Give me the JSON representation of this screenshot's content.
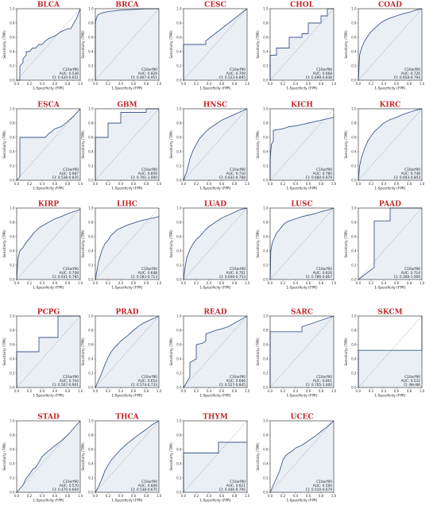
{
  "style": {
    "title_color": "#c0262c",
    "line_color": "#3d5a8a",
    "fill_color": "#d9e2ef",
    "diag_color": "#777777"
  },
  "common": {
    "xlabel": "1-Specificity (FPR)",
    "ylabel": "Sensitivity (TPR)",
    "ticks": [
      "0.0",
      "0.2",
      "0.4",
      "0.6",
      "0.8",
      "1.0"
    ],
    "auc_prefix": "AUC: ",
    "ci_prefix": "CI: "
  },
  "chart_data": [
    {
      "type": "line",
      "title": "BLCA",
      "gene": "C10orf90",
      "auc": "0.536",
      "ci": "0.420-0.651",
      "xlim": [
        0,
        1
      ],
      "ylim": [
        0,
        1
      ],
      "x": [
        0,
        0.05,
        0.05,
        0.1,
        0.1,
        0.15,
        0.15,
        0.2,
        0.25,
        0.3,
        0.35,
        0.4,
        0.45,
        0.5,
        0.55,
        0.6,
        0.65,
        0.7,
        0.75,
        0.8,
        0.85,
        0.9,
        0.95,
        1
      ],
      "y": [
        0,
        0,
        0.2,
        0.25,
        0.3,
        0.35,
        0.4,
        0.4,
        0.45,
        0.45,
        0.5,
        0.5,
        0.55,
        0.58,
        0.6,
        0.62,
        0.65,
        0.68,
        0.7,
        0.72,
        0.72,
        0.8,
        0.88,
        1
      ]
    },
    {
      "type": "line",
      "title": "BRCA",
      "gene": "C10orf90",
      "auc": "0.929",
      "ci": "0.907-0.951",
      "xlim": [
        0,
        1
      ],
      "ylim": [
        0,
        1
      ],
      "x": [
        0,
        0,
        0.02,
        0.05,
        0.1,
        0.15,
        0.2,
        0.3,
        0.4,
        0.6,
        0.8,
        1
      ],
      "y": [
        0,
        0.8,
        0.88,
        0.92,
        0.94,
        0.95,
        0.96,
        0.97,
        0.98,
        0.99,
        1,
        1
      ]
    },
    {
      "type": "line",
      "title": "CESC",
      "gene": "C10orf90",
      "auc": "0.709",
      "ci": "0.523-0.895",
      "xlim": [
        0,
        1
      ],
      "ylim": [
        0,
        1
      ],
      "x": [
        0,
        0,
        0.35,
        0.35,
        1
      ],
      "y": [
        0,
        0.5,
        0.5,
        0.55,
        1
      ]
    },
    {
      "type": "line",
      "title": "CHOL",
      "gene": "C10orf90",
      "auc": "0.668",
      "ci": "0.498-0.838",
      "xlim": [
        0,
        1
      ],
      "ylim": [
        0,
        1
      ],
      "x": [
        0,
        0,
        0.1,
        0.1,
        0.3,
        0.3,
        0.5,
        0.5,
        0.6,
        0.6,
        0.8,
        0.8,
        0.9,
        0.9,
        1
      ],
      "y": [
        0,
        0.35,
        0.35,
        0.45,
        0.45,
        0.6,
        0.6,
        0.65,
        0.65,
        0.8,
        0.8,
        0.9,
        0.9,
        1,
        1
      ]
    },
    {
      "type": "line",
      "title": "COAD",
      "gene": "C10orf90",
      "auc": "0.726",
      "ci": "0.658-0.794",
      "xlim": [
        0,
        1
      ],
      "ylim": [
        0,
        1
      ],
      "x": [
        0,
        0.02,
        0.05,
        0.1,
        0.15,
        0.2,
        0.25,
        0.3,
        0.35,
        0.4,
        0.5,
        0.6,
        0.7,
        0.8,
        0.9,
        1
      ],
      "y": [
        0,
        0.35,
        0.45,
        0.55,
        0.62,
        0.68,
        0.72,
        0.76,
        0.8,
        0.83,
        0.87,
        0.9,
        0.93,
        0.95,
        0.98,
        1
      ]
    },
    {
      "type": "line",
      "title": "ESCA",
      "gene": "C10orf90",
      "auc": "0.687",
      "ci": "0.538-0.835",
      "xlim": [
        0,
        1
      ],
      "ylim": [
        0,
        1
      ],
      "x": [
        0,
        0.05,
        0.05,
        0.45,
        0.5,
        0.55,
        0.6,
        0.7,
        0.8,
        0.9,
        1
      ],
      "y": [
        0,
        0.05,
        0.6,
        0.6,
        0.65,
        0.68,
        0.72,
        0.75,
        0.82,
        0.9,
        1
      ]
    },
    {
      "type": "line",
      "title": "GBM",
      "gene": "C10orf90",
      "auc": "0.856",
      "ci": "0.701-1.000",
      "xlim": [
        0,
        1
      ],
      "ylim": [
        0,
        1
      ],
      "x": [
        0,
        0,
        0.2,
        0.2,
        0.4,
        0.4,
        0.8,
        0.8,
        1
      ],
      "y": [
        0,
        0.6,
        0.6,
        0.8,
        0.8,
        0.95,
        0.95,
        1,
        1
      ]
    },
    {
      "type": "line",
      "title": "HNSC",
      "gene": "C10orf90",
      "auc": "0.710",
      "ci": "0.632-0.788",
      "xlim": [
        0,
        1
      ],
      "ylim": [
        0,
        1
      ],
      "x": [
        0,
        0.05,
        0.1,
        0.15,
        0.2,
        0.25,
        0.3,
        0.35,
        0.4,
        0.5,
        0.6,
        0.7,
        0.8,
        0.9,
        1
      ],
      "y": [
        0,
        0.12,
        0.3,
        0.42,
        0.5,
        0.58,
        0.63,
        0.68,
        0.72,
        0.78,
        0.84,
        0.88,
        0.92,
        0.96,
        1
      ]
    },
    {
      "type": "line",
      "title": "KICH",
      "gene": "C10orf90",
      "auc": "0.780",
      "ci": "0.680-0.879",
      "xlim": [
        0,
        1
      ],
      "ylim": [
        0,
        1
      ],
      "x": [
        0,
        0,
        0.02,
        0.05,
        0.05,
        0.2,
        0.3,
        0.4,
        0.5,
        0.6,
        0.7,
        0.8,
        0.9,
        1
      ],
      "y": [
        0,
        0.3,
        0.5,
        0.55,
        0.7,
        0.72,
        0.75,
        0.76,
        0.78,
        0.8,
        0.82,
        0.84,
        0.86,
        0.88
      ]
    },
    {
      "type": "line",
      "title": "KIRC",
      "gene": "C10orf90",
      "auc": "0.748",
      "ci": "0.693-0.803",
      "xlim": [
        0,
        1
      ],
      "ylim": [
        0,
        1
      ],
      "x": [
        0,
        0.02,
        0.05,
        0.1,
        0.15,
        0.2,
        0.25,
        0.3,
        0.35,
        0.4,
        0.5,
        0.6,
        0.7,
        0.8,
        0.9,
        1
      ],
      "y": [
        0,
        0.2,
        0.32,
        0.45,
        0.55,
        0.62,
        0.68,
        0.72,
        0.76,
        0.8,
        0.85,
        0.88,
        0.92,
        0.95,
        0.98,
        1
      ]
    },
    {
      "type": "line",
      "title": "KIRP",
      "gene": "C10orf90",
      "auc": "0.708",
      "ci": "0.631-0.785",
      "xlim": [
        0,
        1
      ],
      "ylim": [
        0,
        1
      ],
      "x": [
        0,
        0.02,
        0.05,
        0.1,
        0.15,
        0.2,
        0.25,
        0.3,
        0.35,
        0.4,
        0.5,
        0.6,
        0.7,
        0.8,
        0.9,
        1
      ],
      "y": [
        0,
        0.3,
        0.4,
        0.45,
        0.52,
        0.57,
        0.63,
        0.68,
        0.72,
        0.75,
        0.8,
        0.85,
        0.88,
        0.92,
        0.95,
        0.98
      ]
    },
    {
      "type": "line",
      "title": "LIHC",
      "gene": "C10orf90",
      "auc": "0.648",
      "ci": "0.583-0.713",
      "xlim": [
        0,
        1
      ],
      "ylim": [
        0,
        1
      ],
      "x": [
        0,
        0.02,
        0.05,
        0.1,
        0.15,
        0.2,
        0.25,
        0.3,
        0.35,
        0.4,
        0.5,
        0.6,
        0.7,
        0.8,
        0.9,
        1
      ],
      "y": [
        0,
        0.1,
        0.25,
        0.4,
        0.5,
        0.55,
        0.62,
        0.66,
        0.7,
        0.72,
        0.76,
        0.79,
        0.82,
        0.84,
        0.86,
        0.88
      ]
    },
    {
      "type": "line",
      "title": "LUAD",
      "gene": "C10orf90",
      "auc": "0.701",
      "ci": "0.648-0.753",
      "xlim": [
        0,
        1
      ],
      "ylim": [
        0,
        1
      ],
      "x": [
        0,
        0.02,
        0.05,
        0.1,
        0.15,
        0.2,
        0.25,
        0.3,
        0.35,
        0.4,
        0.5,
        0.6,
        0.7,
        0.8,
        0.9,
        1
      ],
      "y": [
        0,
        0.15,
        0.3,
        0.42,
        0.5,
        0.56,
        0.6,
        0.65,
        0.7,
        0.74,
        0.8,
        0.86,
        0.9,
        0.94,
        0.98,
        1
      ]
    },
    {
      "type": "line",
      "title": "LUSC",
      "gene": "C10orf90",
      "auc": "0.826",
      "ci": "0.786-0.867",
      "xlim": [
        0,
        1
      ],
      "ylim": [
        0,
        1
      ],
      "x": [
        0,
        0.01,
        0.03,
        0.05,
        0.1,
        0.15,
        0.2,
        0.25,
        0.3,
        0.4,
        0.5,
        0.6,
        0.7,
        0.8,
        0.9,
        1
      ],
      "y": [
        0,
        0.4,
        0.5,
        0.55,
        0.65,
        0.7,
        0.76,
        0.8,
        0.82,
        0.85,
        0.88,
        0.9,
        0.92,
        0.95,
        0.97,
        1
      ]
    },
    {
      "type": "line",
      "title": "PAAD",
      "gene": "C10orf90",
      "auc": "0.714",
      "ci": "0.308-1.000",
      "xlim": [
        0,
        1
      ],
      "ylim": [
        0,
        1
      ],
      "x": [
        0,
        0.25,
        0.25,
        0.5,
        0.5,
        1
      ],
      "y": [
        0,
        0.17,
        0.82,
        0.82,
        1,
        1
      ]
    },
    {
      "type": "line",
      "title": "PCPG",
      "gene": "C10orf90",
      "auc": "0.704",
      "ci": "0.507-0.901",
      "xlim": [
        0,
        1
      ],
      "ylim": [
        0,
        1
      ],
      "x": [
        0,
        0,
        0.35,
        0.35,
        0.65,
        0.65,
        1
      ],
      "y": [
        0,
        0.5,
        0.5,
        0.7,
        0.7,
        1,
        1
      ]
    },
    {
      "type": "line",
      "title": "PRAD",
      "gene": "C10orf90",
      "auc": "0.654",
      "ci": "0.574-0.733",
      "xlim": [
        0,
        1
      ],
      "ylim": [
        0,
        1
      ],
      "x": [
        0,
        0.05,
        0.1,
        0.15,
        0.2,
        0.25,
        0.3,
        0.35,
        0.4,
        0.5,
        0.6,
        0.7,
        0.8,
        0.9,
        1
      ],
      "y": [
        0,
        0.1,
        0.2,
        0.32,
        0.42,
        0.5,
        0.56,
        0.6,
        0.65,
        0.72,
        0.8,
        0.87,
        0.92,
        0.96,
        1
      ]
    },
    {
      "type": "line",
      "title": "READ",
      "gene": "C10orf90",
      "auc": "0.686",
      "ci": "0.527-0.845",
      "xlim": [
        0,
        1
      ],
      "ylim": [
        0,
        1
      ],
      "x": [
        0,
        0.1,
        0.1,
        0.2,
        0.2,
        0.3,
        0.35,
        0.35,
        0.45,
        0.5,
        0.6,
        0.7,
        0.8,
        0.9,
        1
      ],
      "y": [
        0,
        0.15,
        0.35,
        0.4,
        0.6,
        0.62,
        0.65,
        0.75,
        0.78,
        0.8,
        0.82,
        0.85,
        0.9,
        0.95,
        1
      ]
    },
    {
      "type": "line",
      "title": "SARC",
      "gene": "C10orf90",
      "auc": "0.861",
      "ci": "0.705-1.000",
      "xlim": [
        0,
        1
      ],
      "ylim": [
        0,
        1
      ],
      "x": [
        0,
        0,
        0.5,
        0.5,
        1
      ],
      "y": [
        0,
        0.78,
        0.78,
        0.85,
        1
      ]
    },
    {
      "type": "line",
      "title": "SKCM",
      "gene": "C10orf90",
      "auc": "0.532",
      "ci": "NA-NA",
      "xlim": [
        0,
        1
      ],
      "ylim": [
        0,
        1
      ],
      "x": [
        0,
        0,
        1,
        1
      ],
      "y": [
        0,
        0.52,
        0.52,
        1
      ]
    },
    {
      "type": "line",
      "title": "STAD",
      "gene": "C10orf90",
      "auc": "0.570",
      "ci": "0.470-0.669",
      "xlim": [
        0,
        1
      ],
      "ylim": [
        0,
        1
      ],
      "x": [
        0,
        0.05,
        0.1,
        0.15,
        0.2,
        0.25,
        0.3,
        0.35,
        0.4,
        0.5,
        0.6,
        0.7,
        0.8,
        0.9,
        1
      ],
      "y": [
        0,
        0.05,
        0.1,
        0.2,
        0.25,
        0.32,
        0.35,
        0.42,
        0.5,
        0.58,
        0.65,
        0.72,
        0.8,
        0.9,
        1
      ]
    },
    {
      "type": "line",
      "title": "THCA",
      "gene": "C10orf90",
      "auc": "0.606",
      "ci": "0.538-0.675",
      "xlim": [
        0,
        1
      ],
      "ylim": [
        0,
        1
      ],
      "x": [
        0,
        0.05,
        0.1,
        0.15,
        0.2,
        0.25,
        0.3,
        0.35,
        0.4,
        0.5,
        0.6,
        0.7,
        0.8,
        0.9,
        1
      ],
      "y": [
        0,
        0.08,
        0.18,
        0.3,
        0.38,
        0.45,
        0.5,
        0.55,
        0.6,
        0.68,
        0.75,
        0.82,
        0.88,
        0.95,
        1
      ]
    },
    {
      "type": "line",
      "title": "THYM",
      "gene": "C10orf90",
      "auc": "0.621",
      "ci": "0.446-0.795",
      "xlim": [
        0,
        1
      ],
      "ylim": [
        0,
        1
      ],
      "x": [
        0,
        0,
        0.55,
        0.55,
        1
      ],
      "y": [
        0,
        0.55,
        0.55,
        0.7,
        0.7
      ]
    },
    {
      "type": "line",
      "title": "UCEC",
      "gene": "C10orf90",
      "auc": "0.594",
      "ci": "0.510-0.679",
      "xlim": [
        0,
        1
      ],
      "ylim": [
        0,
        1
      ],
      "x": [
        0,
        0.05,
        0.1,
        0.15,
        0.2,
        0.25,
        0.3,
        0.35,
        0.4,
        0.5,
        0.6,
        0.7,
        0.8,
        0.9,
        1
      ],
      "y": [
        0,
        0.1,
        0.2,
        0.3,
        0.45,
        0.52,
        0.55,
        0.58,
        0.62,
        0.66,
        0.72,
        0.78,
        0.85,
        0.92,
        1
      ]
    }
  ]
}
